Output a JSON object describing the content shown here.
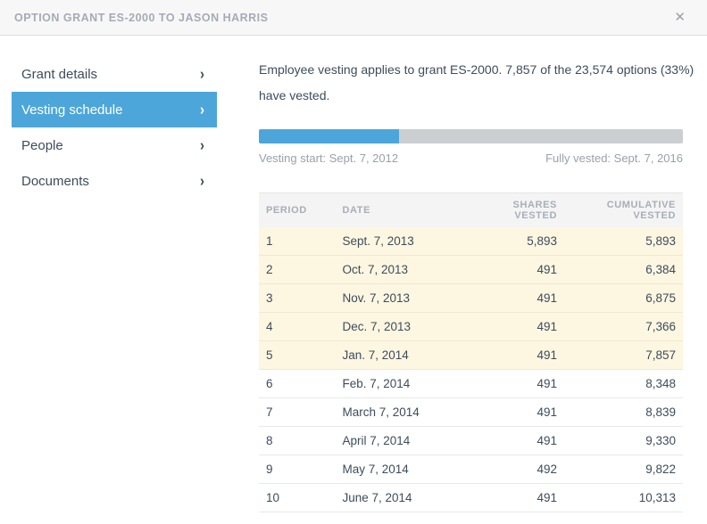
{
  "modal": {
    "title": "OPTION GRANT ES-2000 TO JASON HARRIS",
    "close_icon": "✕"
  },
  "sidebar": {
    "chevron_icon": "›",
    "items": [
      {
        "label": "Grant details",
        "active": false
      },
      {
        "label": "Vesting schedule",
        "active": true
      },
      {
        "label": "People",
        "active": false
      },
      {
        "label": "Documents",
        "active": false
      }
    ]
  },
  "main": {
    "summary_line1": "Employee vesting applies to grant ES-2000. 7,857 of the 23,574 options (33%)",
    "summary_line2": "have vested.",
    "vested_options": "7,857",
    "total_options": "23,574",
    "percent_vested": 33,
    "progress": {
      "percent": 33,
      "start_label": "Vesting start: Sept. 7, 2012",
      "end_label": "Fully vested: Sept. 7, 2016"
    },
    "table": {
      "columns": {
        "period": "Period",
        "date": "Date",
        "shares": "Shares vested",
        "cumulative": "Cumulative vested"
      },
      "rows": [
        {
          "period": "1",
          "date": "Sept. 7, 2013",
          "shares": "5,893",
          "cumulative": "5,893",
          "highlighted": true
        },
        {
          "period": "2",
          "date": "Oct. 7, 2013",
          "shares": "491",
          "cumulative": "6,384",
          "highlighted": true
        },
        {
          "period": "3",
          "date": "Nov. 7, 2013",
          "shares": "491",
          "cumulative": "6,875",
          "highlighted": true
        },
        {
          "period": "4",
          "date": "Dec. 7, 2013",
          "shares": "491",
          "cumulative": "7,366",
          "highlighted": true
        },
        {
          "period": "5",
          "date": "Jan. 7, 2014",
          "shares": "491",
          "cumulative": "7,857",
          "highlighted": true
        },
        {
          "period": "6",
          "date": "Feb. 7, 2014",
          "shares": "491",
          "cumulative": "8,348",
          "highlighted": false
        },
        {
          "period": "7",
          "date": "March 7, 2014",
          "shares": "491",
          "cumulative": "8,839",
          "highlighted": false
        },
        {
          "period": "8",
          "date": "April 7, 2014",
          "shares": "491",
          "cumulative": "9,330",
          "highlighted": false
        },
        {
          "period": "9",
          "date": "May 7, 2014",
          "shares": "492",
          "cumulative": "9,822",
          "highlighted": false
        },
        {
          "period": "10",
          "date": "June 7, 2014",
          "shares": "491",
          "cumulative": "10,313",
          "highlighted": false
        }
      ]
    }
  },
  "colors": {
    "accent_blue": "#4da6d9",
    "highlight_cream": "#fdf6e1",
    "track_gray": "#cbcfd2",
    "header_bg": "#f7f7f8",
    "text_dark": "#3e4c5c",
    "text_muted": "#99a1a9"
  }
}
